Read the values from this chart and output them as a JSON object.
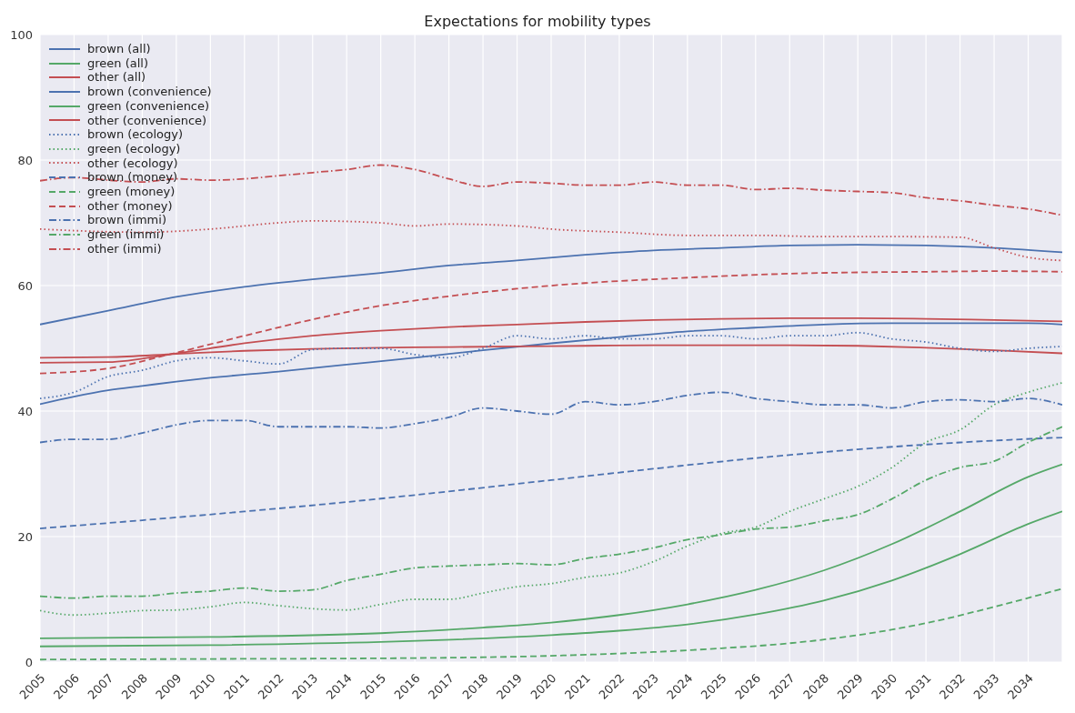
{
  "chart_data": {
    "type": "line",
    "title": "Expectations for mobility types",
    "xlim": [
      2005,
      2035
    ],
    "xticks": [
      2005,
      2006,
      2007,
      2008,
      2009,
      2010,
      2011,
      2012,
      2013,
      2014,
      2015,
      2016,
      2017,
      2018,
      2019,
      2020,
      2021,
      2022,
      2023,
      2024,
      2025,
      2026,
      2027,
      2028,
      2029,
      2030,
      2031,
      2032,
      2033,
      2034
    ],
    "ylim": [
      0,
      100
    ],
    "yticks": [
      0,
      20,
      40,
      60,
      80,
      100
    ],
    "grid": true,
    "legend": "top left",
    "series": [
      {
        "name": "brown (all)",
        "color": "#4c72b0",
        "line_style": "solid",
        "x": [
          2005,
          2006,
          2007,
          2008,
          2009,
          2010,
          2012,
          2014,
          2016,
          2018,
          2020,
          2022,
          2024,
          2026,
          2028,
          2030,
          2032,
          2034,
          2035
        ],
        "values": [
          41.1,
          42.3,
          43.3,
          44.0,
          44.7,
          45.3,
          46.3,
          47.4,
          48.5,
          49.7,
          50.8,
          51.8,
          52.7,
          53.3,
          53.8,
          54.0,
          54.0,
          54.0,
          53.8
        ]
      },
      {
        "name": "green (all)",
        "color": "#55a868",
        "line_style": "solid",
        "x": [
          2005,
          2010,
          2015,
          2020,
          2022,
          2024,
          2026,
          2028,
          2030,
          2032,
          2034,
          2035
        ],
        "values": [
          2.5,
          2.7,
          3.2,
          4.3,
          5.0,
          6.0,
          7.6,
          9.8,
          13.0,
          17.2,
          22.0,
          24.0
        ]
      },
      {
        "name": "other (all)",
        "color": "#c44e52",
        "line_style": "solid",
        "x": [
          2005,
          2007,
          2009,
          2011,
          2013,
          2015,
          2017,
          2019,
          2021,
          2023,
          2025,
          2027,
          2029,
          2031,
          2033,
          2035
        ],
        "values": [
          47.7,
          47.8,
          49.2,
          50.8,
          52.0,
          52.8,
          53.4,
          53.8,
          54.2,
          54.5,
          54.7,
          54.8,
          54.8,
          54.7,
          54.5,
          54.3
        ]
      },
      {
        "name": "brown (convenience)",
        "color": "#4c72b0",
        "line_style": "solid",
        "x": [
          2005,
          2007,
          2009,
          2011,
          2013,
          2015,
          2017,
          2019,
          2021,
          2023,
          2025,
          2027,
          2029,
          2031,
          2033,
          2035
        ],
        "values": [
          53.8,
          56.0,
          58.2,
          59.8,
          61.0,
          62.0,
          63.2,
          64.0,
          64.9,
          65.6,
          66.0,
          66.4,
          66.5,
          66.4,
          66.0,
          65.3
        ]
      },
      {
        "name": "green (convenience)",
        "color": "#55a868",
        "line_style": "solid",
        "x": [
          2005,
          2010,
          2015,
          2018,
          2020,
          2022,
          2024,
          2026,
          2028,
          2030,
          2032,
          2034,
          2035
        ],
        "values": [
          3.8,
          4.0,
          4.6,
          5.5,
          6.3,
          7.5,
          9.2,
          11.5,
          14.6,
          18.8,
          24.0,
          29.5,
          31.5
        ]
      },
      {
        "name": "other (convenience)",
        "color": "#c44e52",
        "line_style": "solid",
        "x": [
          2005,
          2007,
          2009,
          2011,
          2013,
          2015,
          2017,
          2019,
          2021,
          2023,
          2025,
          2027,
          2029,
          2031,
          2033,
          2035
        ],
        "values": [
          48.5,
          48.6,
          49.1,
          49.6,
          49.9,
          50.1,
          50.2,
          50.3,
          50.4,
          50.5,
          50.5,
          50.5,
          50.4,
          50.1,
          49.7,
          49.2
        ]
      },
      {
        "name": "brown (ecology)",
        "color": "#4c72b0",
        "line_style": "dotted",
        "x": [
          2005,
          2006,
          2007,
          2008,
          2009,
          2010,
          2011,
          2012,
          2013,
          2014,
          2015,
          2016,
          2017,
          2018,
          2019,
          2020,
          2021,
          2022,
          2023,
          2024,
          2025,
          2026,
          2027,
          2028,
          2029,
          2030,
          2031,
          2032,
          2033,
          2034,
          2035
        ],
        "values": [
          42,
          43,
          45.5,
          46.5,
          48,
          48.5,
          48,
          47.5,
          49.8,
          50,
          50,
          49,
          48.5,
          50,
          52,
          51.5,
          52,
          51.5,
          51.5,
          52,
          52,
          51.5,
          52,
          52,
          52.5,
          51.5,
          51,
          50,
          49.5,
          50,
          50.3
        ]
      },
      {
        "name": "green (ecology)",
        "color": "#55a868",
        "line_style": "dotted",
        "x": [
          2005,
          2006,
          2007,
          2008,
          2009,
          2010,
          2011,
          2012,
          2013,
          2014,
          2015,
          2016,
          2017,
          2018,
          2019,
          2020,
          2021,
          2022,
          2023,
          2024,
          2025,
          2026,
          2027,
          2028,
          2029,
          2030,
          2031,
          2032,
          2033,
          2034,
          2035
        ],
        "values": [
          8.2,
          7.5,
          7.8,
          8.2,
          8.3,
          8.8,
          9.5,
          9.0,
          8.5,
          8.3,
          9.2,
          10,
          10,
          11,
          12,
          12.5,
          13.5,
          14.2,
          16,
          18.5,
          20.5,
          21.5,
          24,
          26,
          28,
          31,
          35,
          37,
          41,
          43,
          44.5
        ]
      },
      {
        "name": "other (ecology)",
        "color": "#c44e52",
        "line_style": "dotted",
        "x": [
          2005,
          2008,
          2010,
          2012,
          2013,
          2015,
          2016,
          2017,
          2019,
          2020,
          2022,
          2024,
          2026,
          2028,
          2030,
          2032,
          2033,
          2034,
          2035
        ],
        "values": [
          69,
          68.5,
          69,
          70,
          70.3,
          70,
          69.5,
          69.8,
          69.5,
          69,
          68.5,
          68,
          68,
          67.8,
          67.8,
          67.7,
          66,
          64.5,
          64
        ]
      },
      {
        "name": "brown (money)",
        "color": "#4c72b0",
        "line_style": "dashed",
        "x": [
          2005,
          2008,
          2011,
          2014,
          2017,
          2020,
          2023,
          2026,
          2029,
          2032,
          2035
        ],
        "values": [
          21.3,
          22.6,
          24,
          25.5,
          27.2,
          29,
          30.8,
          32.5,
          33.9,
          35,
          35.8
        ]
      },
      {
        "name": "green (money)",
        "color": "#55a868",
        "line_style": "dashed",
        "x": [
          2005,
          2010,
          2015,
          2020,
          2023,
          2025,
          2027,
          2029,
          2031,
          2033,
          2035
        ],
        "values": [
          0.4,
          0.5,
          0.6,
          1.0,
          1.6,
          2.2,
          3.0,
          4.3,
          6.2,
          8.8,
          11.7
        ]
      },
      {
        "name": "other (money)",
        "color": "#c44e52",
        "line_style": "dashed",
        "x": [
          2005,
          2007,
          2009,
          2011,
          2013,
          2015,
          2017,
          2019,
          2021,
          2023,
          2025,
          2027,
          2029,
          2031,
          2033,
          2035
        ],
        "values": [
          46,
          46.8,
          49.3,
          52,
          54.6,
          56.8,
          58.3,
          59.5,
          60.4,
          61,
          61.5,
          61.9,
          62.1,
          62.2,
          62.3,
          62.2
        ]
      },
      {
        "name": "brown (immi)",
        "color": "#4c72b0",
        "line_style": "dashdot",
        "x": [
          2005,
          2006,
          2007,
          2008,
          2009,
          2010,
          2011,
          2012,
          2013,
          2014,
          2015,
          2016,
          2017,
          2018,
          2019,
          2020,
          2021,
          2022,
          2023,
          2024,
          2025,
          2026,
          2027,
          2028,
          2029,
          2030,
          2031,
          2032,
          2033,
          2034,
          2035
        ],
        "values": [
          35,
          35.5,
          35.5,
          36.5,
          37.8,
          38.5,
          38.5,
          37.5,
          37.5,
          37.5,
          37.3,
          38,
          39,
          40.5,
          40,
          39.5,
          41.5,
          41,
          41.5,
          42.5,
          43,
          42,
          41.5,
          41,
          41,
          40.5,
          41.5,
          41.8,
          41.5,
          42,
          41
        ]
      },
      {
        "name": "green (immi)",
        "color": "#55a868",
        "line_style": "dashdot",
        "x": [
          2005,
          2006,
          2007,
          2008,
          2009,
          2010,
          2011,
          2012,
          2013,
          2014,
          2015,
          2016,
          2017,
          2018,
          2019,
          2020,
          2021,
          2022,
          2023,
          2024,
          2025,
          2026,
          2027,
          2028,
          2029,
          2030,
          2031,
          2032,
          2033,
          2034,
          2035
        ],
        "values": [
          10.5,
          10.2,
          10.5,
          10.5,
          11,
          11.3,
          11.8,
          11.3,
          11.5,
          13,
          14,
          15,
          15.3,
          15.5,
          15.7,
          15.5,
          16.5,
          17.2,
          18.2,
          19.5,
          20.3,
          21.2,
          21.5,
          22.5,
          23.5,
          26,
          29,
          31,
          32,
          35,
          37.5
        ]
      },
      {
        "name": "other (immi)",
        "color": "#c44e52",
        "line_style": "dashdot",
        "x": [
          2005,
          2006,
          2007,
          2008,
          2009,
          2010,
          2011,
          2012,
          2013,
          2014,
          2015,
          2016,
          2017,
          2018,
          2019,
          2020,
          2021,
          2022,
          2023,
          2024,
          2025,
          2026,
          2027,
          2028,
          2029,
          2030,
          2031,
          2032,
          2033,
          2034,
          2035
        ],
        "values": [
          76.7,
          77.2,
          76.8,
          76.5,
          77,
          76.8,
          77,
          77.5,
          78,
          78.5,
          79.2,
          78.5,
          77,
          75.8,
          76.5,
          76.3,
          76,
          76,
          76.5,
          76,
          76,
          75.3,
          75.5,
          75.2,
          75,
          74.8,
          74,
          73.5,
          72.8,
          72.2,
          71.2
        ]
      }
    ]
  }
}
